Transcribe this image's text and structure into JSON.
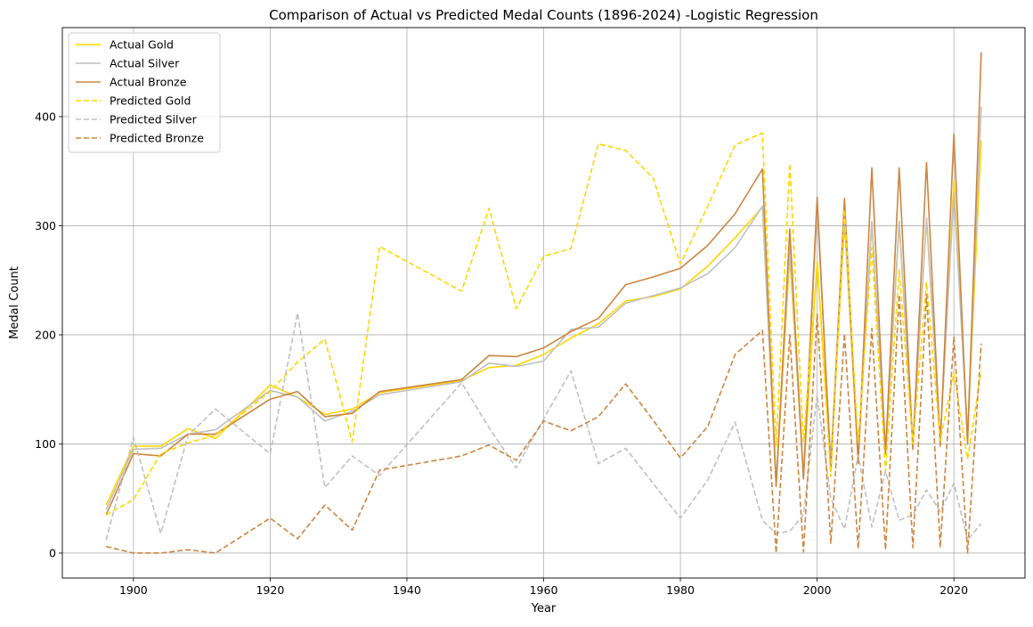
{
  "chart_data": {
    "type": "line",
    "title": "Comparison of Actual vs Predicted Medal Counts (1896-2024) -Logistic Regression",
    "xlabel": "Year",
    "ylabel": "Medal Count",
    "xlim": [
      1889.6,
      2030.4
    ],
    "ylim": [
      -22.9,
      481.6
    ],
    "xticks": [
      1900,
      1920,
      1940,
      1960,
      1980,
      2000,
      2020
    ],
    "yticks": [
      0,
      100,
      200,
      300,
      400
    ],
    "grid": true,
    "legend_position": "top-left",
    "x": [
      1896,
      1900,
      1904,
      1908,
      1912,
      1920,
      1924,
      1928,
      1932,
      1936,
      1948,
      1952,
      1956,
      1960,
      1964,
      1968,
      1972,
      1976,
      1980,
      1984,
      1988,
      1992,
      1994,
      1996,
      1998,
      2000,
      2002,
      2004,
      2006,
      2008,
      2010,
      2012,
      2014,
      2016,
      2018,
      2020,
      2022,
      2024
    ],
    "series": [
      {
        "name": "Actual Gold",
        "color": "#FFD700",
        "style": "solid",
        "values": [
          44,
          98,
          98,
          114,
          105,
          154,
          143,
          127,
          132,
          147,
          158,
          170,
          172,
          182,
          197,
          210,
          231,
          235,
          242,
          263,
          289,
          317,
          63,
          272,
          70,
          267,
          80,
          302,
          86,
          303,
          90,
          302,
          98,
          307,
          102,
          341,
          109,
          378
        ]
      },
      {
        "name": "Actual Silver",
        "color": "#C0C0C0",
        "style": "solid",
        "values": [
          40,
          95,
          96,
          109,
          113,
          149,
          143,
          121,
          130,
          145,
          157,
          174,
          171,
          176,
          205,
          207,
          229,
          236,
          243,
          256,
          280,
          318,
          65,
          282,
          70,
          315,
          85,
          308,
          88,
          304,
          90,
          304,
          98,
          307,
          102,
          330,
          109,
          409
        ]
      },
      {
        "name": "Actual Bronze",
        "color": "#CD853F",
        "style": "solid",
        "values": [
          35,
          91,
          89,
          109,
          109,
          141,
          148,
          125,
          128,
          148,
          159,
          181,
          180,
          188,
          203,
          215,
          246,
          253,
          261,
          282,
          311,
          352,
          61,
          297,
          68,
          326,
          75,
          325,
          82,
          353,
          91,
          353,
          95,
          358,
          98,
          384,
          100,
          459
        ]
      },
      {
        "name": "Predicted Gold",
        "color": "#FFD700",
        "style": "dashed",
        "values": [
          35,
          49,
          91,
          101,
          108,
          148,
          175,
          196,
          102,
          281,
          240,
          316,
          224,
          272,
          279,
          375,
          369,
          344,
          265,
          318,
          374,
          385,
          98,
          357,
          102,
          265,
          70,
          315,
          101,
          280,
          75,
          260,
          100,
          248,
          103,
          165,
          86,
          167
        ]
      },
      {
        "name": "Predicted Silver",
        "color": "#C0C0C0",
        "style": "dashed",
        "values": [
          12,
          106,
          18,
          108,
          132,
          91,
          220,
          60,
          89,
          71,
          156,
          115,
          78,
          123,
          167,
          82,
          96,
          64,
          32,
          67,
          120,
          30,
          18,
          20,
          35,
          145,
          50,
          22,
          90,
          24,
          75,
          30,
          35,
          58,
          38,
          64,
          12,
          27
        ]
      },
      {
        "name": "Predicted Bronze",
        "color": "#CD853F",
        "style": "dashed",
        "values": [
          6,
          0,
          0,
          3,
          0,
          32,
          13,
          44,
          21,
          76,
          89,
          99,
          85,
          121,
          112,
          125,
          155,
          122,
          87,
          116,
          182,
          204,
          0,
          200,
          1,
          219,
          9,
          201,
          4,
          206,
          3,
          237,
          5,
          237,
          5,
          198,
          0,
          192
        ]
      }
    ]
  }
}
